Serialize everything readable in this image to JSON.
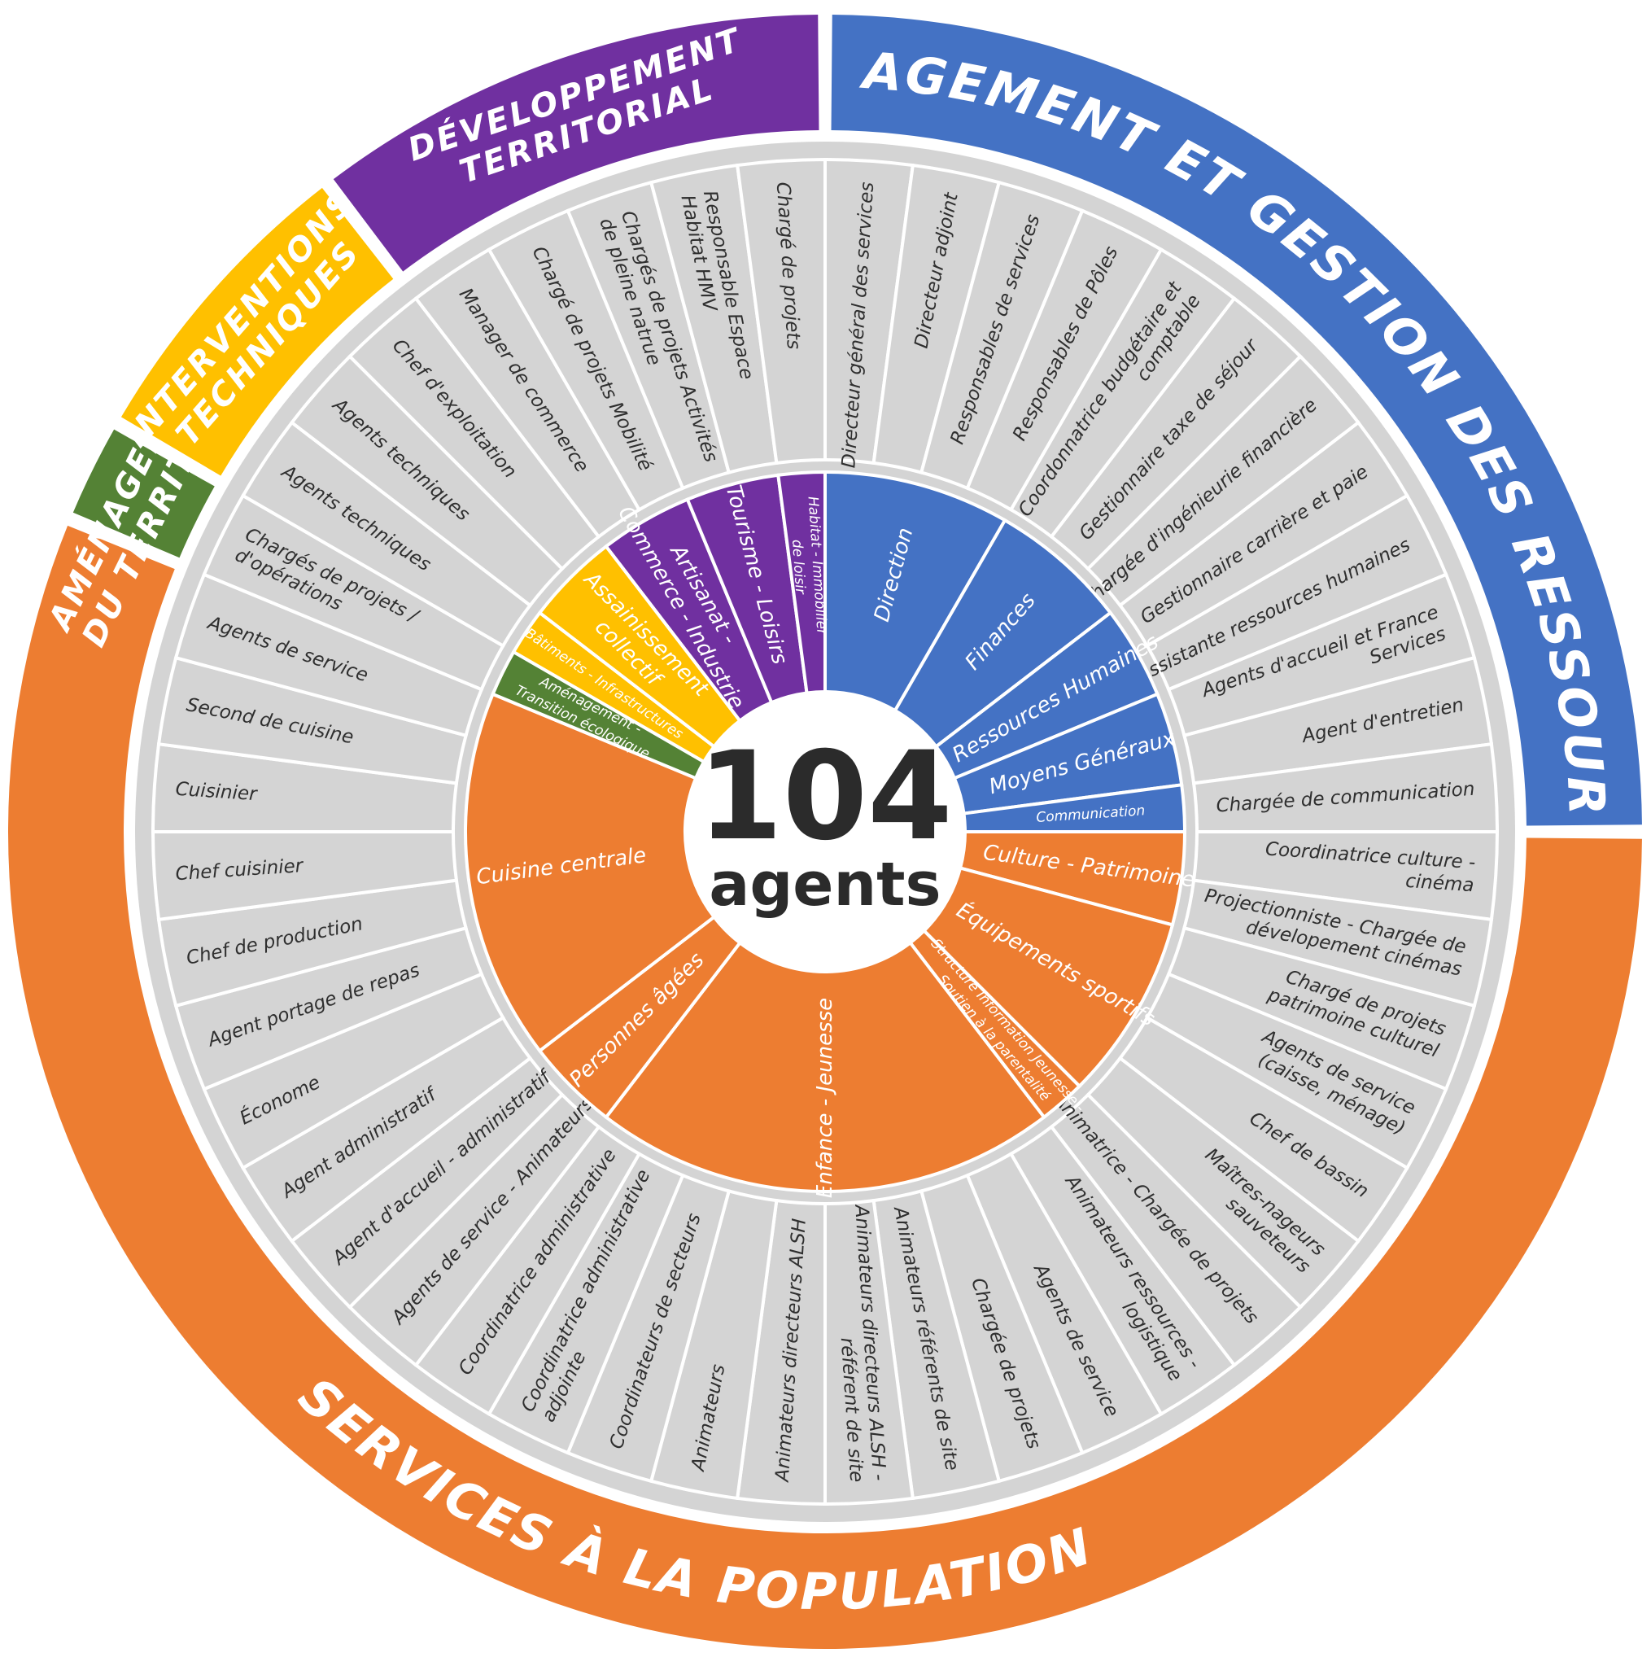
{
  "center": {
    "number": "104",
    "label": "agents"
  },
  "colors": {
    "management": "#4472C4",
    "developpement": "#7030A0",
    "interventions": "#FFC000",
    "amenagement": "#548235",
    "services": "#ED7D31",
    "job_fill": "#D4D4D4",
    "ring_track": "#D4D4D4"
  },
  "poles": [
    {
      "name": "management",
      "lines": [
        "MANAGEMENT ET GESTION DES RESSOURCES"
      ]
    },
    {
      "name": "services",
      "lines": [
        "SERVICES À LA POPULATION"
      ]
    },
    {
      "name": "amenagement",
      "lines": [
        "AMÉNAGEMENT",
        "DU TERRITOIRE"
      ]
    },
    {
      "name": "interventions",
      "lines": [
        "INTERVENTIONS",
        "TECHNIQUES"
      ]
    },
    {
      "name": "developpement",
      "lines": [
        "DÉVELOPPEMENT",
        "TERRITORIAL"
      ]
    }
  ],
  "services": [
    {
      "name": "direction",
      "pole": "management",
      "lines": [
        "Direction"
      ]
    },
    {
      "name": "finances",
      "pole": "management",
      "lines": [
        "Finances"
      ]
    },
    {
      "name": "ressources-humaines",
      "pole": "management",
      "lines": [
        "Ressources Humaines"
      ]
    },
    {
      "name": "moyens-generaux",
      "pole": "management",
      "lines": [
        "Moyens Généraux"
      ]
    },
    {
      "name": "communication",
      "pole": "management",
      "lines": [
        "Communication"
      ]
    },
    {
      "name": "culture-patrimoine",
      "pole": "services",
      "lines": [
        "Culture - Patrimoine"
      ]
    },
    {
      "name": "equipements-sportifs",
      "pole": "services",
      "lines": [
        "Équipements sportifs"
      ]
    },
    {
      "name": "structure-information-jeunesse",
      "pole": "services",
      "lines": [
        "Structure Information Jeunesse -",
        "Soutien à la parentalité"
      ]
    },
    {
      "name": "enfance-jeunesse",
      "pole": "services",
      "lines": [
        "Enfance - Jeunesse"
      ]
    },
    {
      "name": "personnes-agees",
      "pole": "services",
      "lines": [
        "Personnes âgées"
      ]
    },
    {
      "name": "cuisine-centrale",
      "pole": "services",
      "lines": [
        "Cuisine centrale"
      ]
    },
    {
      "name": "amenagement-transition",
      "pole": "amenagement",
      "lines": [
        "Aménagement -",
        "Transition écologique"
      ]
    },
    {
      "name": "batiments-infrastructures",
      "pole": "interventions",
      "lines": [
        "Bâtiments - Infrastructures"
      ]
    },
    {
      "name": "assainissement",
      "pole": "interventions",
      "lines": [
        "Assainissement",
        "collectif"
      ]
    },
    {
      "name": "artisanat-commerce",
      "pole": "developpement",
      "lines": [
        "Artisanat -",
        "Commerce - Industrie"
      ]
    },
    {
      "name": "tourisme-loisirs",
      "pole": "developpement",
      "lines": [
        "Tourisme - Loisirs"
      ]
    },
    {
      "name": "habitat-immobilier",
      "pole": "developpement",
      "lines": [
        "Habitat - Immobilier",
        "de loisir"
      ]
    }
  ],
  "jobs": [
    {
      "service": "direction",
      "lines": [
        "Directeur général des services"
      ]
    },
    {
      "service": "direction",
      "lines": [
        "Directeur adjoint"
      ]
    },
    {
      "service": "direction",
      "lines": [
        "Responsables de services"
      ]
    },
    {
      "service": "direction",
      "lines": [
        "Responsables de Pôles"
      ]
    },
    {
      "service": "finances",
      "lines": [
        "Coordonnatrice budgétaire et",
        "comptable"
      ]
    },
    {
      "service": "finances",
      "lines": [
        "Gestionnaire taxe de séjour"
      ]
    },
    {
      "service": "finances",
      "lines": [
        "Chargée d'ingénieurie financière"
      ]
    },
    {
      "service": "ressources-humaines",
      "lines": [
        "Gestionnaire carrière et paie"
      ]
    },
    {
      "service": "ressources-humaines",
      "lines": [
        "Assistante ressources humaines"
      ]
    },
    {
      "service": "moyens-generaux",
      "lines": [
        "Agents d'accueil et France",
        "Services"
      ]
    },
    {
      "service": "moyens-generaux",
      "lines": [
        "Agent d'entretien"
      ]
    },
    {
      "service": "communication",
      "lines": [
        "Chargée de communication"
      ]
    },
    {
      "service": "culture-patrimoine",
      "lines": [
        "Coordinatrice culture -",
        "cinéma"
      ]
    },
    {
      "service": "culture-patrimoine",
      "lines": [
        "Projectionniste - Chargée de",
        "dévelopement cinémas"
      ]
    },
    {
      "service": "equipements-sportifs",
      "lines": [
        "Chargé de projets",
        "patrimoine culturel"
      ]
    },
    {
      "service": "equipements-sportifs",
      "lines": [
        "Agents de service",
        "(caisse, ménage)"
      ]
    },
    {
      "service": "equipements-sportifs",
      "lines": [
        "Chef de bassin"
      ]
    },
    {
      "service": "equipements-sportifs",
      "lines": [
        "Maîtres-nageurs",
        "sauveteurs"
      ]
    },
    {
      "service": "structure-information-jeunesse",
      "lines": [
        "Animatrice - Chargée de projets"
      ]
    },
    {
      "service": "enfance-jeunesse",
      "lines": [
        "Animateurs ressources -",
        "logistique"
      ]
    },
    {
      "service": "enfance-jeunesse",
      "lines": [
        "Agents de service"
      ]
    },
    {
      "service": "enfance-jeunesse",
      "lines": [
        "Chargée de projets"
      ]
    },
    {
      "service": "enfance-jeunesse",
      "lines": [
        "Animateurs référents de site"
      ]
    },
    {
      "service": "enfance-jeunesse",
      "lines": [
        "Animateurs directeurs ALSH -",
        "référent de site"
      ]
    },
    {
      "service": "enfance-jeunesse",
      "lines": [
        "Animateurs directeurs ALSH"
      ]
    },
    {
      "service": "enfance-jeunesse",
      "lines": [
        "Animateurs"
      ]
    },
    {
      "service": "enfance-jeunesse",
      "lines": [
        "Coordinateurs de secteurs"
      ]
    },
    {
      "service": "enfance-jeunesse",
      "lines": [
        "Coordinatrice administrative",
        "adjointe"
      ]
    },
    {
      "service": "enfance-jeunesse",
      "lines": [
        "Coordinatrice administrative"
      ]
    },
    {
      "service": "personnes-agees",
      "lines": [
        "Agents de service - Animateurs"
      ]
    },
    {
      "service": "personnes-agees",
      "lines": [
        "Agent d'accueil - administratif"
      ]
    },
    {
      "service": "cuisine-centrale",
      "lines": [
        "Agent administratif"
      ]
    },
    {
      "service": "cuisine-centrale",
      "lines": [
        "Économe"
      ]
    },
    {
      "service": "cuisine-centrale",
      "lines": [
        "Agent portage de repas"
      ]
    },
    {
      "service": "cuisine-centrale",
      "lines": [
        "Chef de production"
      ]
    },
    {
      "service": "cuisine-centrale",
      "lines": [
        "Chef cuisinier"
      ]
    },
    {
      "service": "cuisine-centrale",
      "lines": [
        "Cuisinier"
      ]
    },
    {
      "service": "cuisine-centrale",
      "lines": [
        "Second de cuisine"
      ]
    },
    {
      "service": "cuisine-centrale",
      "lines": [
        "Agents de service"
      ]
    },
    {
      "service": "amenagement-transition",
      "lines": [
        "Chargés de projets /",
        "d'opérations"
      ]
    },
    {
      "service": "batiments-infrastructures",
      "lines": [
        "Agents techniques"
      ]
    },
    {
      "service": "assainissement",
      "lines": [
        "Agents techniques"
      ]
    },
    {
      "service": "assainissement",
      "lines": [
        "Chef d'exploitation"
      ]
    },
    {
      "service": "artisanat-commerce",
      "lines": [
        "Manager de commerce"
      ]
    },
    {
      "service": "artisanat-commerce",
      "lines": [
        "Chargé de projets Mobilité"
      ]
    },
    {
      "service": "tourisme-loisirs",
      "lines": [
        "Chargés de projets Activités",
        "de pleine natrue"
      ]
    },
    {
      "service": "tourisme-loisirs",
      "lines": [
        "Responsable Espace",
        "Habitat HMV"
      ]
    },
    {
      "service": "habitat-immobilier",
      "lines": [
        "Chargé de projets"
      ]
    }
  ]
}
